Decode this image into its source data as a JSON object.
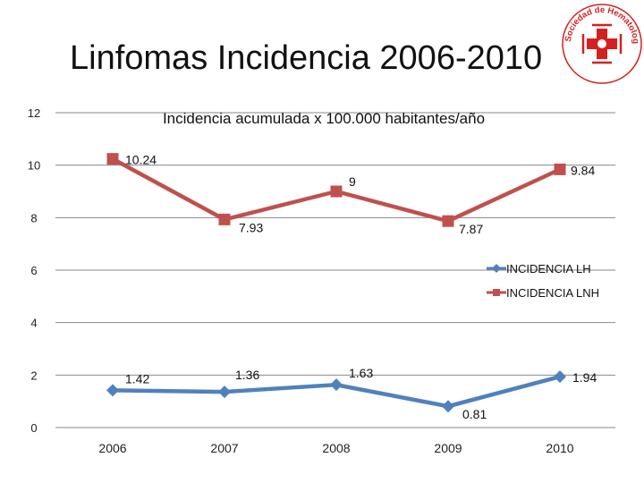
{
  "slide": {
    "title": "Linfomas Incidencia 2006-2010"
  },
  "logo": {
    "text": "Sociedad de Hematología del Uruguay",
    "color": "#d42020"
  },
  "chart_data": {
    "type": "line",
    "title": "Incidencia acumulada x 100.000 habitantes/año",
    "categories": [
      "2006",
      "2007",
      "2008",
      "2009",
      "2010"
    ],
    "series": [
      {
        "name": "INCIDENCIA LH",
        "values": [
          1.42,
          1.36,
          1.63,
          0.81,
          1.94
        ],
        "color": "#4f81bd",
        "marker": "diamond"
      },
      {
        "name": "INCIDENCIA LNH",
        "values": [
          10.24,
          7.93,
          9,
          7.87,
          9.84
        ],
        "color": "#c0504d",
        "marker": "square"
      }
    ],
    "ylim": [
      0,
      12
    ],
    "yticks": [
      0,
      2,
      4,
      6,
      8,
      10,
      12
    ],
    "xlabel": "",
    "ylabel": "",
    "grid": true,
    "legend": "right"
  }
}
